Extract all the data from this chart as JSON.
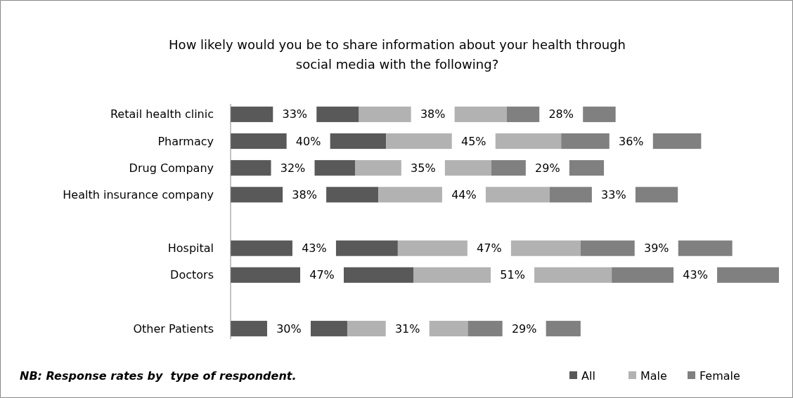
{
  "chart_data": {
    "type": "bar",
    "orientation": "horizontal",
    "stacked": true,
    "title": "How likely would you be to share information about your health through\nsocial media with the following?",
    "categories": [
      "Retail health clinic",
      "Pharmacy",
      "Drug Company",
      "Health insurance company",
      null,
      "Hospital",
      "Doctors",
      null,
      "Other Patients"
    ],
    "series": [
      {
        "name": "All",
        "color": "#595959",
        "values": [
          33,
          40,
          32,
          38,
          null,
          43,
          47,
          null,
          30
        ],
        "value_labels": [
          "33%",
          "40%",
          "32%",
          "38%",
          null,
          "43%",
          "47%",
          null,
          "30%"
        ]
      },
      {
        "name": "Male",
        "color": "#b2b2b2",
        "values": [
          38,
          45,
          35,
          44,
          null,
          47,
          51,
          null,
          31
        ],
        "value_labels": [
          "38%",
          "45%",
          "35%",
          "44%",
          null,
          "47%",
          "51%",
          null,
          "31%"
        ]
      },
      {
        "name": "Female",
        "color": "#808080",
        "values": [
          28,
          36,
          29,
          33,
          null,
          39,
          43,
          null,
          29
        ],
        "value_labels": [
          "28%",
          "36%",
          "29%",
          "33%",
          null,
          "39%",
          "43%",
          null,
          "29%"
        ]
      }
    ],
    "legend": "bottom right",
    "annotations": [
      "NB: Response rates by  type of respondent."
    ]
  }
}
